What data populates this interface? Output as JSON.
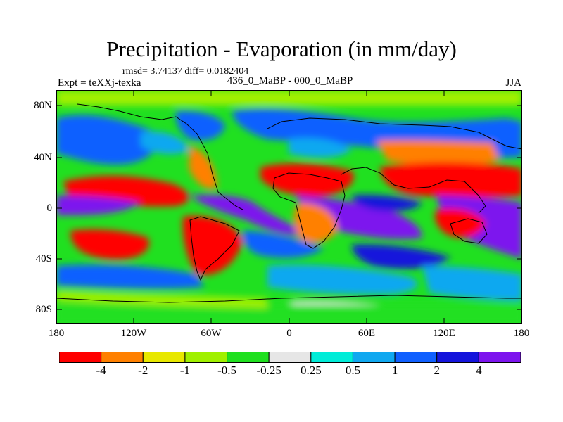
{
  "title": "Precipitation - Evaporation (in mm/day)",
  "stats": "rmsd= 3.74137 diff= 0.0182404",
  "experiment": "Expt = teXXj-texka",
  "comparison": "436_0_MaBP - 000_0_MaBP",
  "season": "JJA",
  "axes": {
    "y_ticks": [
      "80N",
      "40N",
      "0",
      "40S",
      "80S"
    ],
    "x_ticks": [
      "180",
      "120W",
      "60W",
      "0",
      "60E",
      "120E",
      "180"
    ]
  },
  "colorbar": {
    "colors": [
      "#ff0000",
      "#ff8000",
      "#e8e800",
      "#a0f000",
      "#20e020",
      "#e6e6e6",
      "#00ecd8",
      "#10a8f0",
      "#1060ff",
      "#1414dc",
      "#7d14ee"
    ],
    "labels": [
      "-4",
      "-2",
      "-1",
      "-0.5",
      "-0.25",
      "0.25",
      "0.5",
      "1",
      "2",
      "4"
    ]
  }
}
